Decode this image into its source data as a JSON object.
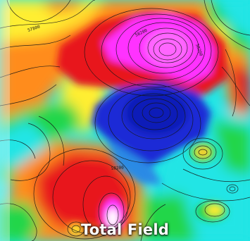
{
  "map": {
    "caption": "Total Field",
    "palette": {
      "max": "#ff33ff",
      "high": "#e8141e",
      "mid_high": "#ff8c1a",
      "mid": "#ffee33",
      "mid_low": "#22d64a",
      "low": "#22e5e5",
      "min": "#1a2ad6"
    },
    "contour_labels": [
      "57800",
      "58200",
      "58200",
      "58200"
    ]
  }
}
